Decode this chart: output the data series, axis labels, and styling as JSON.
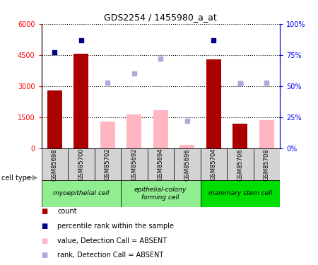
{
  "title": "GDS2254 / 1455980_a_at",
  "samples": [
    "GSM85698",
    "GSM85700",
    "GSM85702",
    "GSM85692",
    "GSM85694",
    "GSM85696",
    "GSM85704",
    "GSM85706",
    "GSM85708"
  ],
  "count_present": [
    2800,
    4550,
    null,
    null,
    null,
    null,
    4300,
    1200,
    null
  ],
  "count_absent": [
    null,
    null,
    1300,
    1650,
    1850,
    180,
    null,
    null,
    1350
  ],
  "rank_present_pct": [
    77,
    87,
    null,
    null,
    null,
    null,
    87,
    52,
    null
  ],
  "rank_absent_pct": [
    null,
    null,
    53,
    60,
    72,
    22,
    null,
    52,
    53
  ],
  "ylim_left": [
    0,
    6000
  ],
  "ylim_right": [
    0,
    100
  ],
  "yticks_left": [
    0,
    1500,
    3000,
    4500,
    6000
  ],
  "ytick_labels_left": [
    "0",
    "1500",
    "3000",
    "4500",
    "6000"
  ],
  "ytick_labels_right": [
    "0%",
    "25%",
    "50%",
    "75%",
    "100%"
  ],
  "color_present_bar": "#AA0000",
  "color_absent_bar": "#FFB6C1",
  "color_present_rank": "#00008B",
  "color_absent_rank": "#AAAADD",
  "cell_groups": [
    {
      "label": "myoepithelial cell",
      "start": 0,
      "end": 2,
      "color": "#90EE90"
    },
    {
      "label": "epithelial-colony\nforming cell",
      "start": 3,
      "end": 5,
      "color": "#90EE90"
    },
    {
      "label": "mammary stem cell",
      "start": 6,
      "end": 8,
      "color": "#00DD00"
    }
  ],
  "legend_items": [
    {
      "label": "count",
      "color": "#AA0000"
    },
    {
      "label": "percentile rank within the sample",
      "color": "#00008B"
    },
    {
      "label": "value, Detection Call = ABSENT",
      "color": "#FFB6C1"
    },
    {
      "label": "rank, Detection Call = ABSENT",
      "color": "#AAAADD"
    }
  ]
}
